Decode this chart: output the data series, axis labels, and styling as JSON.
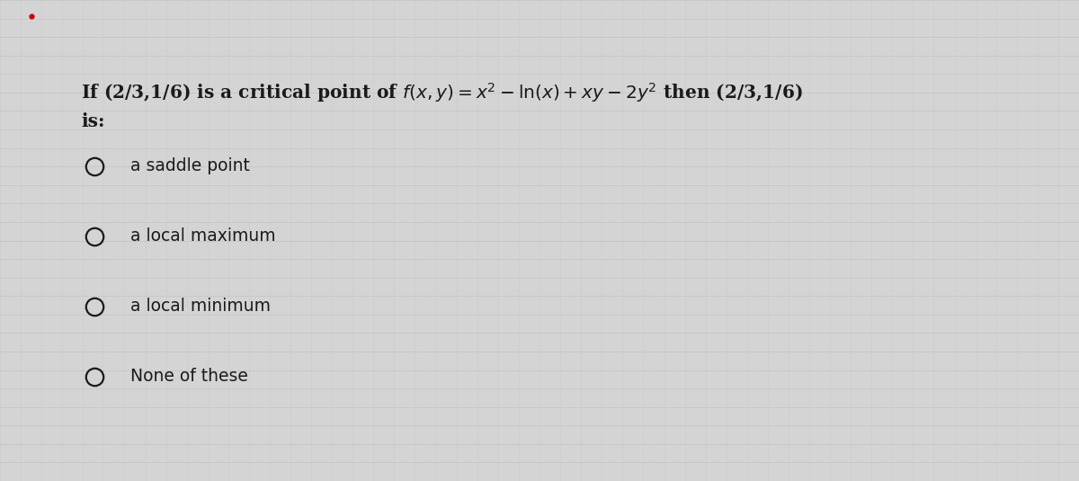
{
  "bg_color": "#d4d4d4",
  "panel_color": "#e8e8e8",
  "text_color": "#1a1a1a",
  "grid_color": "#c0c0c0",
  "options": [
    "a saddle point",
    "a local maximum",
    "a local minimum",
    "None of these"
  ],
  "fontsize_question": 14.5,
  "fontsize_options": 13.5,
  "red_dot_color": "#cc0000",
  "circle_linewidth": 1.8
}
